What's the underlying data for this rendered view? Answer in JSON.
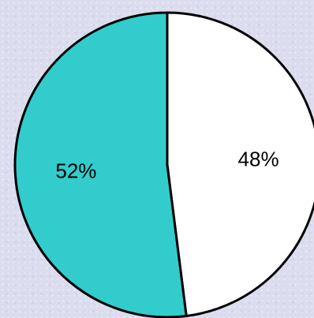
{
  "chart_data": {
    "type": "pie",
    "slices": [
      {
        "value": 48,
        "label": "48%",
        "color": "#ffffff"
      },
      {
        "value": 52,
        "label": "52%",
        "color": "#33cccc"
      }
    ],
    "start": "top",
    "direction": "clockwise",
    "outline_color": "#000000"
  }
}
